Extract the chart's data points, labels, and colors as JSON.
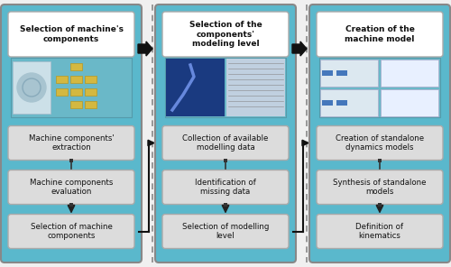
{
  "bg_color": "#f0f0f0",
  "panel_bg": "#5ab8cc",
  "header_bg": "#ffffff",
  "box_bg": "#dcdcdc",
  "box_border": "#aaaaaa",
  "arrow_color": "#111111",
  "dashed_line_color": "#888888",
  "panel_border": "#888888",
  "panels": [
    {
      "title": "Selection of machine's\ncomponents",
      "boxes": [
        "Machine components'\nextraction",
        "Machine components\nevaluation",
        "Selection of machine\ncomponents"
      ]
    },
    {
      "title": "Selection of the\ncomponents'\nmodeling level",
      "boxes": [
        "Collection of available\nmodelling data",
        "Identification of\nmissing data",
        "Selection of modelling\nlevel"
      ]
    },
    {
      "title": "Creation of the\nmachine model",
      "boxes": [
        "Creation of standalone\ndynamics models",
        "Synthesis of standalone\nmodels",
        "Definition of\nkinematics"
      ]
    }
  ]
}
